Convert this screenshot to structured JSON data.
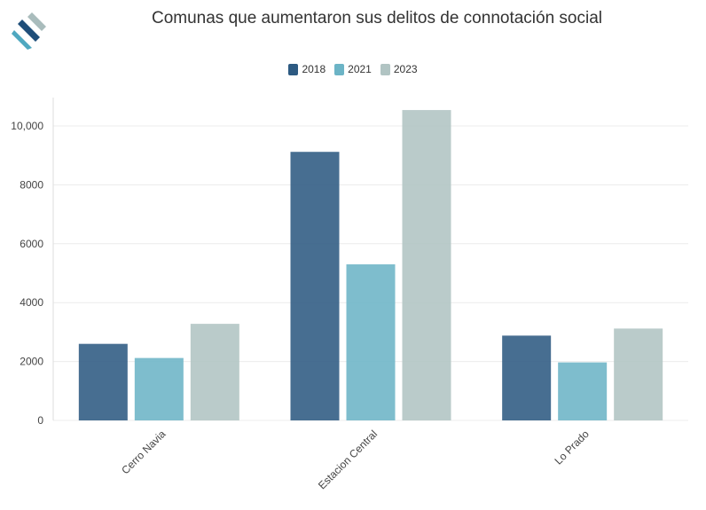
{
  "chart_data": {
    "type": "bar",
    "title": "Comunas que aumentaron sus delitos de connotación social",
    "xlabel": "",
    "ylabel": "",
    "categories": [
      "Cerro Navia",
      "Estacion Central",
      "Lo Prado"
    ],
    "series": [
      {
        "name": "2018",
        "color": "#2d5a82",
        "values": [
          2600,
          9120,
          2880
        ]
      },
      {
        "name": "2021",
        "color": "#6cb4c6",
        "values": [
          2120,
          5300,
          1970
        ]
      },
      {
        "name": "2023",
        "color": "#b1c4c3",
        "values": [
          3280,
          10540,
          3120
        ]
      }
    ],
    "ylim": [
      0,
      11000
    ],
    "yticks": [
      {
        "value": 0,
        "label": "0"
      },
      {
        "value": 2000,
        "label": "2000"
      },
      {
        "value": 4000,
        "label": "4000"
      },
      {
        "value": 6000,
        "label": "6000"
      },
      {
        "value": 8000,
        "label": "8000"
      },
      {
        "value": 10000,
        "label": "10,000"
      }
    ],
    "grid": true,
    "legend_position": "top-center"
  },
  "colors": {
    "logo_dark": "#1f4e79",
    "logo_light": "#4fa8c0",
    "logo_grey": "#a9bcbc",
    "grid": "#ececec",
    "axis": "#dddddd"
  },
  "icons": {
    "logo": "brand-logo-icon"
  }
}
